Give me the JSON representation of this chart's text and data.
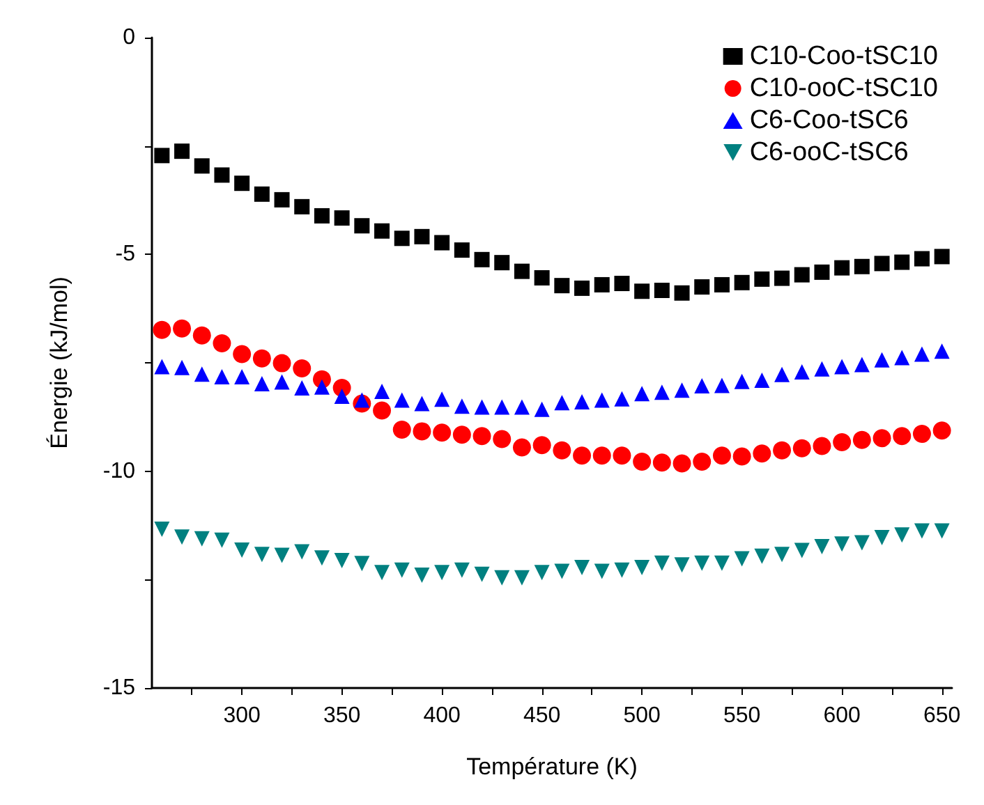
{
  "chart_data": {
    "type": "scatter",
    "xlabel": "Température (K)",
    "ylabel": "Énergie (kJ/mol)",
    "x": [
      260,
      270,
      280,
      290,
      300,
      310,
      320,
      330,
      340,
      350,
      360,
      370,
      380,
      390,
      400,
      410,
      420,
      430,
      440,
      450,
      460,
      470,
      480,
      490,
      500,
      510,
      520,
      530,
      540,
      550,
      560,
      570,
      580,
      590,
      600,
      610,
      620,
      630,
      640,
      650
    ],
    "xlim": [
      255,
      655
    ],
    "xticks": [
      {
        "value": 275,
        "label": null
      },
      300,
      {
        "value": 325,
        "label": null
      },
      350,
      {
        "value": 375,
        "label": null
      },
      400,
      {
        "value": 425,
        "label": null
      },
      450,
      {
        "value": 475,
        "label": null
      },
      500,
      {
        "value": 525,
        "label": null
      },
      550,
      {
        "value": 575,
        "label": null
      },
      600,
      {
        "value": 625,
        "label": null
      },
      650
    ],
    "ylim": [
      -15,
      0
    ],
    "yticks": [
      -15,
      {
        "value": -12.5,
        "label": null
      },
      -10,
      {
        "value": -7.5,
        "label": null
      },
      -5,
      {
        "value": -2.5,
        "label": null
      },
      0
    ],
    "grid": false,
    "legend": "top right",
    "series": [
      {
        "name": "C10-Coo-tSC10",
        "color": "#000000",
        "marker": "square",
        "values": [
          -2.72,
          -2.62,
          -2.96,
          -3.17,
          -3.36,
          -3.61,
          -3.74,
          -3.9,
          -4.11,
          -4.16,
          -4.34,
          -4.46,
          -4.63,
          -4.59,
          -4.73,
          -4.9,
          -5.12,
          -5.19,
          -5.39,
          -5.54,
          -5.72,
          -5.78,
          -5.7,
          -5.67,
          -5.85,
          -5.83,
          -5.89,
          -5.75,
          -5.7,
          -5.65,
          -5.57,
          -5.55,
          -5.47,
          -5.41,
          -5.31,
          -5.28,
          -5.21,
          -5.18,
          -5.1,
          -5.05
        ]
      },
      {
        "name": "C10-ooC-tSC10",
        "color": "#ff0000",
        "marker": "circle",
        "values": [
          -6.74,
          -6.71,
          -6.87,
          -7.05,
          -7.3,
          -7.4,
          -7.51,
          -7.63,
          -7.88,
          -8.08,
          -8.44,
          -8.6,
          -9.04,
          -9.08,
          -9.11,
          -9.16,
          -9.19,
          -9.26,
          -9.45,
          -9.4,
          -9.52,
          -9.64,
          -9.64,
          -9.64,
          -9.78,
          -9.8,
          -9.82,
          -9.78,
          -9.64,
          -9.66,
          -9.59,
          -9.52,
          -9.47,
          -9.42,
          -9.33,
          -9.28,
          -9.24,
          -9.19,
          -9.14,
          -9.06
        ]
      },
      {
        "name": "C6-Coo-tSC6",
        "color": "#0000ff",
        "marker": "triangle",
        "values": [
          -7.59,
          -7.61,
          -7.76,
          -7.82,
          -7.82,
          -7.98,
          -7.94,
          -8.08,
          -8.06,
          -8.27,
          -8.36,
          -8.16,
          -8.36,
          -8.44,
          -8.34,
          -8.5,
          -8.52,
          -8.52,
          -8.52,
          -8.57,
          -8.42,
          -8.4,
          -8.36,
          -8.33,
          -8.21,
          -8.18,
          -8.13,
          -8.03,
          -8.02,
          -7.93,
          -7.9,
          -7.77,
          -7.71,
          -7.64,
          -7.59,
          -7.54,
          -7.43,
          -7.38,
          -7.3,
          -7.23
        ]
      },
      {
        "name": "C6-ooC-tSC6",
        "color": "#008080",
        "marker": "triangle-down",
        "values": [
          -11.34,
          -11.52,
          -11.56,
          -11.59,
          -11.82,
          -11.92,
          -11.94,
          -11.86,
          -12.0,
          -12.06,
          -12.13,
          -12.34,
          -12.28,
          -12.4,
          -12.34,
          -12.28,
          -12.38,
          -12.46,
          -12.46,
          -12.34,
          -12.31,
          -12.22,
          -12.31,
          -12.28,
          -12.22,
          -12.12,
          -12.16,
          -12.12,
          -12.12,
          -12.02,
          -11.96,
          -11.92,
          -11.83,
          -11.74,
          -11.68,
          -11.65,
          -11.53,
          -11.47,
          -11.38,
          -11.38
        ]
      }
    ]
  }
}
